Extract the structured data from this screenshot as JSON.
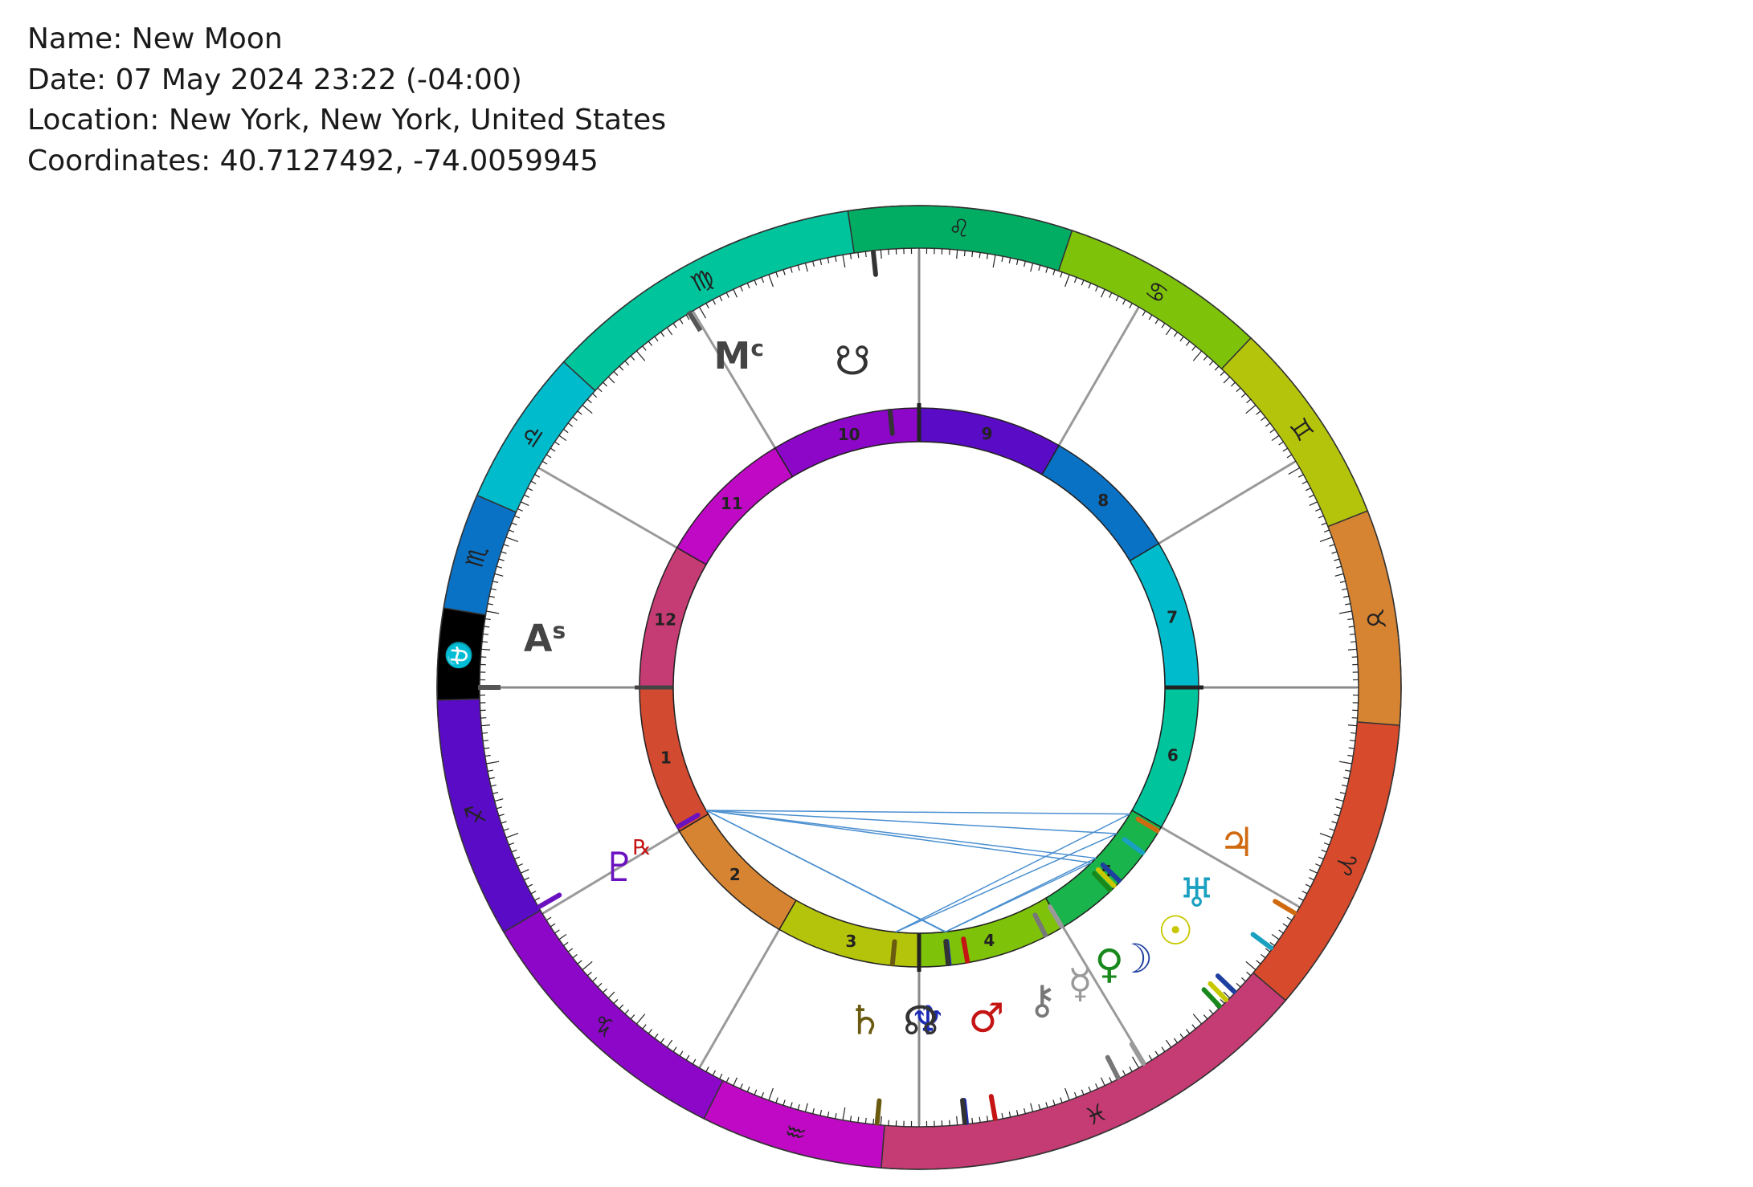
{
  "info": {
    "name": "Name: New Moon",
    "date": "Date: 07 May 2024 23:22 (-04:00)",
    "location": "Location: New York, New York, United States",
    "coordinates": "Coordinates: 40.7127492, -74.0059945"
  },
  "signs": [
    {
      "name": "aries",
      "glyph": "♈",
      "color": "#d84a2c"
    },
    {
      "name": "taurus",
      "glyph": "♉",
      "color": "#d68432"
    },
    {
      "name": "gemini",
      "glyph": "♊",
      "color": "#b4c40a"
    },
    {
      "name": "cancer",
      "glyph": "♋",
      "color": "#7ec20a"
    },
    {
      "name": "leo",
      "glyph": "♌",
      "color": "#00ad63"
    },
    {
      "name": "virgo",
      "glyph": "♍",
      "color": "#00c49c"
    },
    {
      "name": "libra",
      "glyph": "♎",
      "color": "#00bbcc"
    },
    {
      "name": "scorpio",
      "glyph": "♏",
      "color": "#0a72c5"
    },
    {
      "name": "ophiuchus",
      "glyph": "⛎",
      "color": "#000000"
    },
    {
      "name": "sagittarius",
      "glyph": "♐",
      "color": "#5a0bc6"
    },
    {
      "name": "capricorn",
      "glyph": "♑",
      "color": "#8c07c8"
    },
    {
      "name": "aquarius",
      "glyph": "♒",
      "color": "#c009c4"
    },
    {
      "name": "pisces",
      "glyph": "♓",
      "color": "#c53b73"
    }
  ],
  "houses": [
    {
      "label": "1",
      "color": "#d24a30"
    },
    {
      "label": "2",
      "color": "#d68432"
    },
    {
      "label": "3",
      "color": "#b4c40a"
    },
    {
      "label": "4",
      "color": "#7ec20a"
    },
    {
      "label": "5",
      "color": "#19b44c"
    },
    {
      "label": "6",
      "color": "#00c49c"
    },
    {
      "label": "7",
      "color": "#00bbcc"
    },
    {
      "label": "8",
      "color": "#0a72c5"
    },
    {
      "label": "9",
      "color": "#5a0bc6"
    },
    {
      "label": "10",
      "color": "#8c07c8"
    },
    {
      "label": "11",
      "color": "#c009c4"
    },
    {
      "label": "12",
      "color": "#c53b73"
    }
  ],
  "angles": [
    {
      "name": "ascendant",
      "label": "As"
    },
    {
      "name": "midheaven",
      "label": "Mc"
    }
  ],
  "planets": [
    {
      "name": "sun",
      "glyph": "☉",
      "color": "#c8c800",
      "retrograde": false
    },
    {
      "name": "moon",
      "glyph": "☽",
      "color": "#1f3fa0",
      "retrograde": false
    },
    {
      "name": "mercury",
      "glyph": "☿",
      "color": "#9a9a9a",
      "retrograde": false
    },
    {
      "name": "venus",
      "glyph": "♀",
      "color": "#18881c",
      "retrograde": false
    },
    {
      "name": "mars",
      "glyph": "♂",
      "color": "#c41414",
      "retrograde": false
    },
    {
      "name": "jupiter",
      "glyph": "♃",
      "color": "#d06a10",
      "retrograde": false
    },
    {
      "name": "saturn",
      "glyph": "♄",
      "color": "#6a5a10",
      "retrograde": false
    },
    {
      "name": "uranus",
      "glyph": "♅",
      "color": "#1aa0c0",
      "retrograde": false
    },
    {
      "name": "neptune",
      "glyph": "♆",
      "color": "#1a2ab4",
      "retrograde": false
    },
    {
      "name": "pluto",
      "glyph": "♇",
      "color": "#6a12c0",
      "retrograde": true
    },
    {
      "name": "chiron",
      "glyph": "⚷",
      "color": "#777777",
      "retrograde": false
    },
    {
      "name": "north-node",
      "glyph": "☊",
      "color": "#333333",
      "retrograde": false
    },
    {
      "name": "south-node",
      "glyph": "☋",
      "color": "#333333",
      "retrograde": false
    }
  ],
  "retrograde_symbol": "℞",
  "aspect_color": "#4a8fd0"
}
